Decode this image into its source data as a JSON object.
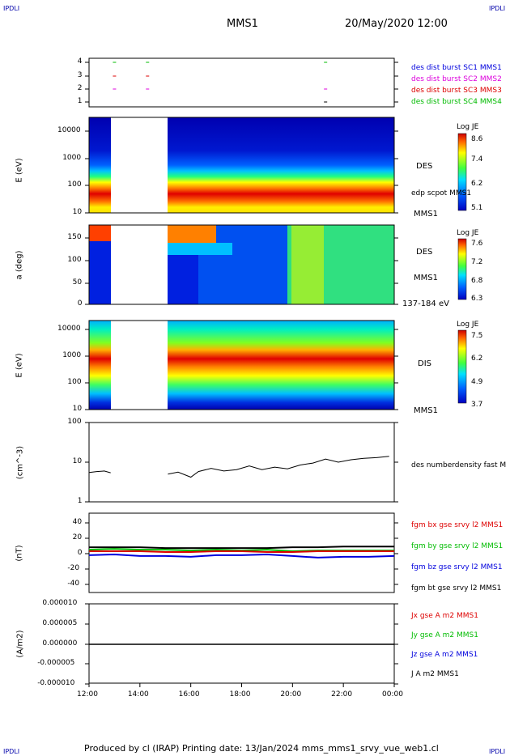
{
  "corners": {
    "tl": "IPDLI",
    "tr": "IPDLI",
    "bl": "IPDLI",
    "br": "IPDLI"
  },
  "header": {
    "spacecraft": "MMS1",
    "date": "20/May/2020 12:00"
  },
  "footer": "Produced by cl (IRAP)   Printing date: 13/Jan/2024   mms_mms1_srvy_vue_web1.cl",
  "colors": {
    "red": "#dd0000",
    "green": "#00bb00",
    "blue": "#0000dd",
    "magenta": "#dd00dd",
    "black": "#000000"
  },
  "chart_data": [
    {
      "type": "scatter",
      "panel": "burst",
      "yticks": [
        "1",
        "2",
        "3",
        "4"
      ],
      "legend": [
        {
          "label": "des dist burst SC1 MMS1",
          "color": "#0000dd"
        },
        {
          "label": "des dist burst SC2 MMS2",
          "color": "#dd00dd"
        },
        {
          "label": "des dist burst SC3 MMS3",
          "color": "#dd0000"
        },
        {
          "label": "des dist burst SC4 MMS4",
          "color": "#00bb00"
        }
      ],
      "marks": [
        {
          "x": 13.0,
          "y": 4,
          "color": "#00bb00"
        },
        {
          "x": 14.3,
          "y": 4,
          "color": "#00bb00"
        },
        {
          "x": 21.3,
          "y": 4,
          "color": "#00bb00"
        },
        {
          "x": 13.0,
          "y": 3,
          "color": "#dd0000"
        },
        {
          "x": 14.3,
          "y": 3,
          "color": "#dd0000"
        },
        {
          "x": 13.0,
          "y": 2,
          "color": "#dd00dd"
        },
        {
          "x": 14.3,
          "y": 2,
          "color": "#dd00dd"
        },
        {
          "x": 21.3,
          "y": 2,
          "color": "#dd00dd"
        },
        {
          "x": 21.3,
          "y": 1,
          "color": "#000000"
        }
      ]
    },
    {
      "type": "heatmap",
      "panel": "des-energy",
      "ylabel": "E (eV)",
      "yticks": [
        "10",
        "100",
        "1000",
        "10000"
      ],
      "name": "DES",
      "under": "MMS1",
      "overlay": "edp scpot MMS1",
      "cbar": {
        "title": "Log JE",
        "ticks": [
          "8.6",
          "7.4",
          "6.2",
          "5.1"
        ]
      },
      "gap": [
        12.85,
        15.1
      ]
    },
    {
      "type": "heatmap",
      "panel": "des-pitch",
      "ylabel": "a (deg)",
      "yticks": [
        "0",
        "50",
        "100",
        "150"
      ],
      "name": "DES",
      "under": "MMS1",
      "energy": "137-184 eV",
      "cbar": {
        "title": "Log JE",
        "ticks": [
          "7.6",
          "7.2",
          "6.8",
          "6.3"
        ]
      },
      "gap": [
        12.85,
        15.1
      ]
    },
    {
      "type": "heatmap",
      "panel": "dis-energy",
      "ylabel": "E (eV)",
      "yticks": [
        "10",
        "100",
        "1000",
        "10000"
      ],
      "name": "DIS",
      "under": "MMS1",
      "cbar": {
        "title": "Log JE",
        "ticks": [
          "7.5",
          "6.2",
          "4.9",
          "3.7"
        ]
      },
      "gap": [
        12.85,
        15.1
      ]
    },
    {
      "type": "line",
      "panel": "density",
      "ylabel": "(cm^-3)",
      "yticks": [
        "1",
        "10",
        "100"
      ],
      "ylim": [
        1,
        100
      ],
      "ylog": true,
      "legend": [
        {
          "label": "des numberdensity fast M",
          "color": "#000000"
        }
      ],
      "x": [
        12.0,
        12.3,
        12.6,
        12.85,
        15.1,
        15.5,
        16.0,
        16.3,
        16.8,
        17.3,
        17.8,
        18.3,
        18.8,
        19.3,
        19.8,
        20.3,
        20.8,
        21.3,
        21.8,
        22.3,
        22.8,
        23.3,
        23.8
      ],
      "y": [
        5.5,
        5.8,
        6.0,
        5.4,
        5.0,
        5.6,
        4.2,
        5.8,
        7.0,
        6.0,
        6.5,
        8.0,
        6.5,
        7.5,
        6.8,
        8.5,
        9.5,
        12.0,
        10.0,
        11.5,
        12.5,
        13.0,
        14.0
      ],
      "gap": [
        12.85,
        15.1
      ]
    },
    {
      "type": "line",
      "panel": "magnetic",
      "ylabel": "(nT)",
      "yticks": [
        "-40",
        "-20",
        "0",
        "20",
        "40"
      ],
      "ylim": [
        -50,
        50
      ],
      "legend": [
        {
          "label": "fgm bx gse srvy l2 MMS1",
          "color": "#dd0000"
        },
        {
          "label": "fgm by gse srvy l2 MMS1",
          "color": "#00bb00"
        },
        {
          "label": "fgm bz gse srvy l2 MMS1",
          "color": "#0000dd"
        },
        {
          "label": "fgm bt gse srvy l2 MMS1",
          "color": "#000000"
        }
      ],
      "x": [
        12,
        13,
        14,
        15,
        16,
        17,
        18,
        19,
        20,
        21,
        22,
        23,
        24
      ],
      "series": [
        {
          "name": "fgm bx gse srvy l2 MMS1",
          "values": [
            2,
            2,
            2,
            1,
            1,
            2,
            2,
            1,
            1,
            2,
            2,
            2,
            2
          ]
        },
        {
          "name": "fgm by gse srvy l2 MMS1",
          "values": [
            4,
            5,
            4,
            4,
            3,
            4,
            3,
            4,
            2,
            3,
            3,
            3,
            3
          ]
        },
        {
          "name": "fgm bz gse srvy l2 MMS1",
          "values": [
            -3,
            -2,
            -4,
            -4,
            -5,
            -3,
            -3,
            -2,
            -4,
            -6,
            -5,
            -5,
            -4
          ]
        },
        {
          "name": "fgm bt gse srvy l2 MMS1",
          "values": [
            7,
            7,
            7,
            6,
            6,
            6,
            6,
            6,
            7,
            7,
            8,
            8,
            8
          ]
        }
      ]
    },
    {
      "type": "line",
      "panel": "current",
      "ylabel": "(A/m2)",
      "yticks": [
        "-0.000010",
        "-0.000005",
        "0.000000",
        "0.000005",
        "0.000010"
      ],
      "ylim": [
        -1e-05,
        1e-05
      ],
      "legend": [
        {
          "label": "Jx gse A m2 MMS1",
          "color": "#dd0000"
        },
        {
          "label": "Jy gse A m2 MMS1",
          "color": "#00bb00"
        },
        {
          "label": "Jz gse A m2 MMS1",
          "color": "#0000dd"
        },
        {
          "label": "J A m2 MMS1",
          "color": "#000000"
        }
      ],
      "x": [
        12,
        24
      ],
      "series": [
        {
          "name": "J A m2 MMS1",
          "values": [
            0,
            0
          ]
        }
      ]
    }
  ],
  "xaxis": {
    "ticks": [
      "12:00",
      "14:00",
      "16:00",
      "18:00",
      "20:00",
      "22:00",
      "00:00"
    ]
  }
}
